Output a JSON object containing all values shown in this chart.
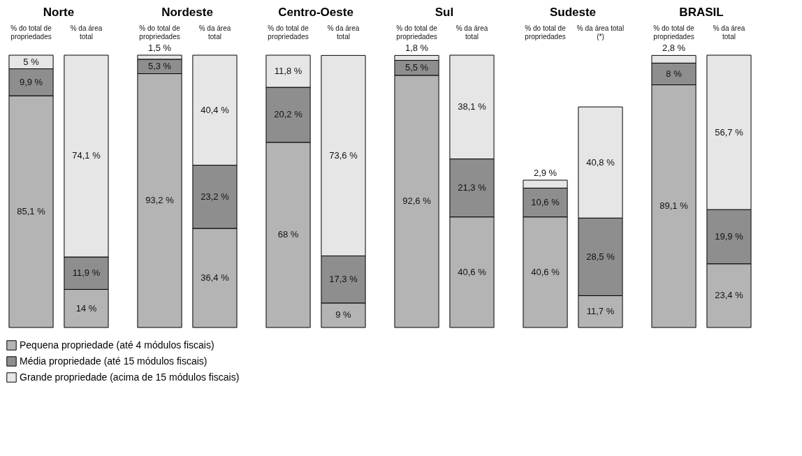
{
  "chart_data": [
    {
      "type": "bar",
      "stacked": true,
      "title": "Norte",
      "categories": [
        "% do total de propriedades",
        "% da área total"
      ],
      "legend": "bottom",
      "series": [
        {
          "name": "Pequena propriedade (até 4 módulos fiscais)",
          "color": "#b4b4b4",
          "values": [
            85.1,
            14
          ],
          "value_labels": [
            "85,1 %",
            "14 %"
          ]
        },
        {
          "name": "Média propriedade (até 15 módulos fiscais)",
          "color": "#8e8e8e",
          "values": [
            9.9,
            11.9
          ],
          "value_labels": [
            "9,9 %",
            "11,9 %"
          ]
        },
        {
          "name": "Grande propriedade (acima de 15 módulos fiscais)",
          "color": "#e6e6e6",
          "values": [
            5,
            74.1
          ],
          "value_labels": [
            "5 %",
            "74,1 %"
          ]
        }
      ]
    },
    {
      "type": "bar",
      "stacked": true,
      "title": "Nordeste",
      "categories": [
        "% do total de propriedades",
        "% da área total"
      ],
      "series": [
        {
          "name": "Pequena propriedade (até 4 módulos fiscais)",
          "color": "#b4b4b4",
          "values": [
            93.2,
            36.4
          ],
          "value_labels": [
            "93,2 %",
            "36,4 %"
          ]
        },
        {
          "name": "Média propriedade (até 15 módulos fiscais)",
          "color": "#8e8e8e",
          "values": [
            5.3,
            23.2
          ],
          "value_labels": [
            "5,3 %",
            "23,2 %"
          ]
        },
        {
          "name": "Grande propriedade (acima de 15 módulos fiscais)",
          "color": "#e6e6e6",
          "values": [
            1.5,
            40.4
          ],
          "value_labels": [
            "1,5 %",
            "40,4 %"
          ]
        }
      ]
    },
    {
      "type": "bar",
      "stacked": true,
      "title": "Centro-Oeste",
      "categories": [
        "% do total de propriedades",
        "% da área total"
      ],
      "series": [
        {
          "name": "Pequena propriedade (até 4 módulos fiscais)",
          "color": "#b4b4b4",
          "values": [
            68,
            9
          ],
          "value_labels": [
            "68 %",
            "9 %"
          ]
        },
        {
          "name": "Média propriedade (até 15 módulos fiscais)",
          "color": "#8e8e8e",
          "values": [
            20.2,
            17.3
          ],
          "value_labels": [
            "20,2 %",
            "17,3 %"
          ]
        },
        {
          "name": "Grande propriedade (acima de 15 módulos fiscais)",
          "color": "#e6e6e6",
          "values": [
            11.8,
            73.6
          ],
          "value_labels": [
            "11,8 %",
            "73,6 %"
          ]
        }
      ]
    },
    {
      "type": "bar",
      "stacked": true,
      "title": "Sul",
      "categories": [
        "% do total de propriedades",
        "% da área total"
      ],
      "series": [
        {
          "name": "Pequena propriedade (até 4 módulos fiscais)",
          "color": "#b4b4b4",
          "values": [
            92.6,
            40.6
          ],
          "value_labels": [
            "92,6 %",
            "40,6 %"
          ]
        },
        {
          "name": "Média propriedade (até 15 módulos fiscais)",
          "color": "#8e8e8e",
          "values": [
            5.5,
            21.3
          ],
          "value_labels": [
            "5,5 %",
            "21,3 %"
          ]
        },
        {
          "name": "Grande propriedade (acima de 15 módulos fiscais)",
          "color": "#e6e6e6",
          "values": [
            1.8,
            38.1
          ],
          "value_labels": [
            "1,8 %",
            "38,1 %"
          ]
        }
      ]
    },
    {
      "type": "bar",
      "stacked": true,
      "title": "Sudeste",
      "categories": [
        "% do total de propriedades",
        "% da área total (*)"
      ],
      "series": [
        {
          "name": "Pequena propriedade (até 4 módulos fiscais)",
          "color": "#b4b4b4",
          "values": [
            40.6,
            11.7
          ],
          "value_labels": [
            "40,6 %",
            "11,7 %"
          ]
        },
        {
          "name": "Média propriedade (até 15 módulos fiscais)",
          "color": "#8e8e8e",
          "values": [
            10.6,
            28.5
          ],
          "value_labels": [
            "10,6 %",
            "28,5 %"
          ]
        },
        {
          "name": "Grande propriedade (acima de 15 módulos fiscais)",
          "color": "#e6e6e6",
          "values": [
            2.9,
            40.8
          ],
          "value_labels": [
            "2,9 %",
            "40,8 %"
          ]
        }
      ]
    },
    {
      "type": "bar",
      "stacked": true,
      "title": "BRASIL",
      "categories": [
        "% do total de propriedades",
        "% da área total"
      ],
      "series": [
        {
          "name": "Pequena propriedade (até 4 módulos fiscais)",
          "color": "#b4b4b4",
          "values": [
            89.1,
            23.4
          ],
          "value_labels": [
            "89,1 %",
            "23,4 %"
          ]
        },
        {
          "name": "Média propriedade (até 15 módulos fiscais)",
          "color": "#8e8e8e",
          "values": [
            8,
            19.9
          ],
          "value_labels": [
            "8 %",
            "19,9 %"
          ]
        },
        {
          "name": "Grande propriedade (acima de 15 módulos fiscais)",
          "color": "#e6e6e6",
          "values": [
            2.8,
            56.7
          ],
          "value_labels": [
            "2,8 %",
            "56,7 %"
          ]
        }
      ]
    }
  ]
}
